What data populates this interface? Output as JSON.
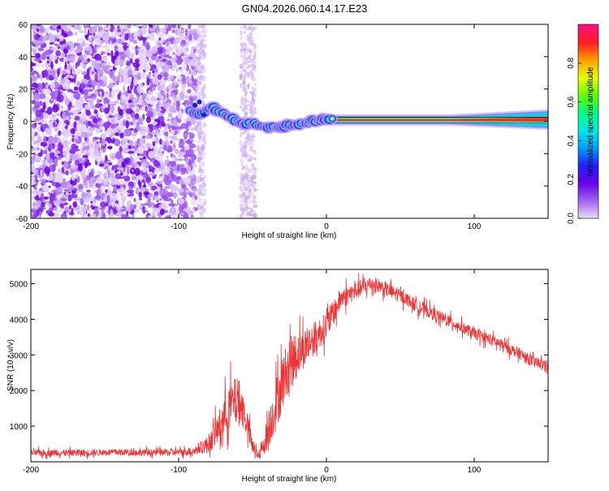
{
  "title": "GN04.2026.060.14.17.E23",
  "chart_data": [
    {
      "type": "heatmap",
      "title": "GN04.2026.060.14.17.E23",
      "xlabel": "Height of straight line (km)",
      "ylabel": "Frequency (Hz)",
      "xlim": [
        -200,
        150
      ],
      "ylim": [
        -60,
        60
      ],
      "xticks": [
        -200,
        -100,
        0,
        100
      ],
      "yticks": [
        -60,
        -40,
        -20,
        0,
        20,
        40,
        60
      ],
      "colorbar": {
        "label": "Normalized spectral amplitude",
        "range": [
          0.0,
          1.0
        ],
        "ticks": [
          0.0,
          0.2,
          0.4,
          0.6,
          0.8
        ],
        "colormap": [
          "#e8d8f8",
          "#a060f0",
          "#6a00e8",
          "#2020ff",
          "#00a0ff",
          "#00e8e8",
          "#00ff80",
          "#60ff00",
          "#e8ff00",
          "#ffa000",
          "#ff2020",
          "#ff1080"
        ]
      },
      "ridge": {
        "description": "frequency ridge, Hz vs km",
        "x": [
          -92,
          -85,
          -78,
          -72,
          -66,
          -60,
          -55,
          -50,
          -44,
          -38,
          -30,
          -22,
          -15,
          -8,
          -2,
          3,
          10,
          30,
          60,
          90,
          120,
          150
        ],
        "y": [
          6,
          4,
          9,
          6,
          3,
          0,
          -2,
          -1,
          -3,
          -4,
          -3,
          -2,
          -1,
          0,
          1,
          2,
          1,
          0.5,
          0.5,
          0.5,
          0.5,
          0.5
        ]
      }
    },
    {
      "type": "line",
      "xlabel": "Height of straight line (km)",
      "ylabel": "SNR (10 * v/v)",
      "xlim": [
        -200,
        150
      ],
      "ylim": [
        0,
        5400
      ],
      "xticks": [
        -200,
        -100,
        0,
        100
      ],
      "yticks": [
        1000,
        2000,
        3000,
        4000,
        5000
      ],
      "series": [
        {
          "name": "SNR",
          "color": "#ee3333",
          "x": [
            -200,
            -180,
            -160,
            -140,
            -120,
            -100,
            -90,
            -80,
            -75,
            -70,
            -65,
            -60,
            -55,
            -50,
            -45,
            -40,
            -35,
            -30,
            -25,
            -20,
            -15,
            -10,
            -5,
            0,
            5,
            10,
            15,
            20,
            25,
            30,
            35,
            40,
            45,
            50,
            55,
            60,
            70,
            80,
            90,
            100,
            110,
            120,
            130,
            140,
            150
          ],
          "values": [
            250,
            250,
            260,
            270,
            260,
            270,
            300,
            500,
            800,
            1200,
            1600,
            1800,
            1300,
            400,
            200,
            800,
            1500,
            2200,
            2800,
            3000,
            3200,
            3400,
            3600,
            3800,
            4200,
            4600,
            4700,
            4800,
            4900,
            5000,
            4950,
            4850,
            4750,
            4650,
            4550,
            4400,
            4200,
            4000,
            3800,
            3600,
            3450,
            3250,
            3050,
            2800,
            2700
          ],
          "noise_amplitude": [
            120,
            110,
            120,
            110,
            120,
            120,
            150,
            300,
            500,
            700,
            800,
            800,
            600,
            300,
            200,
            600,
            900,
            1000,
            900,
            800,
            700,
            600,
            550,
            500,
            450,
            400,
            350,
            320,
            300,
            280,
            260,
            250,
            240,
            240,
            230,
            230,
            220,
            210,
            200,
            200,
            200,
            200,
            200,
            200,
            200
          ]
        }
      ]
    }
  ]
}
